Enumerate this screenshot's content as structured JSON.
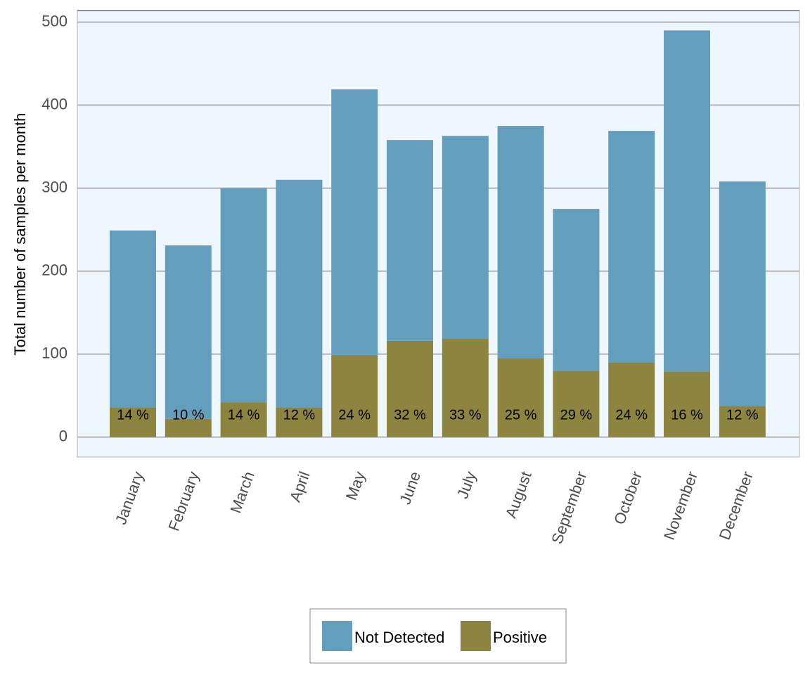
{
  "chart_data": {
    "type": "stacked_bar",
    "y_label": "Total number of samples per month",
    "categories": [
      "January",
      "February",
      "March",
      "April",
      "May",
      "June",
      "July",
      "August",
      "September",
      "October",
      "November",
      "December"
    ],
    "series": [
      {
        "name": "Not Detected",
        "color": "#639ebd",
        "values": [
          213,
          209,
          258,
          274,
          320,
          242,
          244,
          280,
          195,
          279,
          411,
          271
        ]
      },
      {
        "name": "Positive",
        "color": "#8c843f",
        "values": [
          36,
          22,
          42,
          36,
          99,
          116,
          119,
          95,
          80,
          90,
          79,
          37
        ],
        "data_labels": [
          "14 %",
          "10 %",
          "14 %",
          "12 %",
          "24 %",
          "32 %",
          "33 %",
          "25 %",
          "29 %",
          "24 %",
          "16 %",
          "12 %"
        ]
      }
    ],
    "ylim": [
      -24,
      514
    ],
    "yticks": [
      0,
      100,
      200,
      300,
      400,
      500
    ],
    "grid": true,
    "legend": "bottom"
  }
}
